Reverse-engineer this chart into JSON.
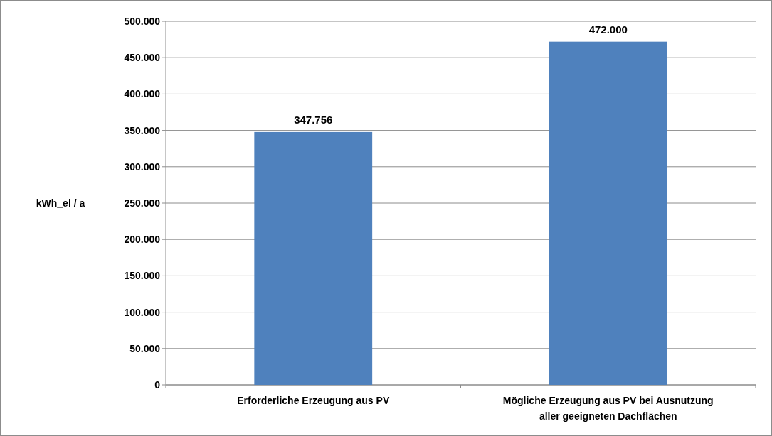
{
  "chart_data": {
    "type": "bar",
    "ylabel": "kWh_el / a",
    "categories": [
      "Erforderliche Erzeugung aus PV",
      "Mögliche Erzeugung aus PV bei Ausnutzung aller geeigneten Dachflächen"
    ],
    "values": [
      347756,
      472000
    ],
    "color": "#4f81bd",
    "value_labels": [
      "347.756",
      "472.000"
    ],
    "ylim": [
      0,
      500000
    ],
    "yticks": [
      {
        "value": 0,
        "label": "0"
      },
      {
        "value": 50000,
        "label": "50.000"
      },
      {
        "value": 100000,
        "label": "100.000"
      },
      {
        "value": 150000,
        "label": "150.000"
      },
      {
        "value": 200000,
        "label": "200.000"
      },
      {
        "value": 250000,
        "label": "250.000"
      },
      {
        "value": 300000,
        "label": "300.000"
      },
      {
        "value": 350000,
        "label": "350.000"
      },
      {
        "value": 400000,
        "label": "400.000"
      },
      {
        "value": 450000,
        "label": "450.000"
      },
      {
        "value": 500000,
        "label": "500.000"
      }
    ],
    "grid": "y"
  }
}
